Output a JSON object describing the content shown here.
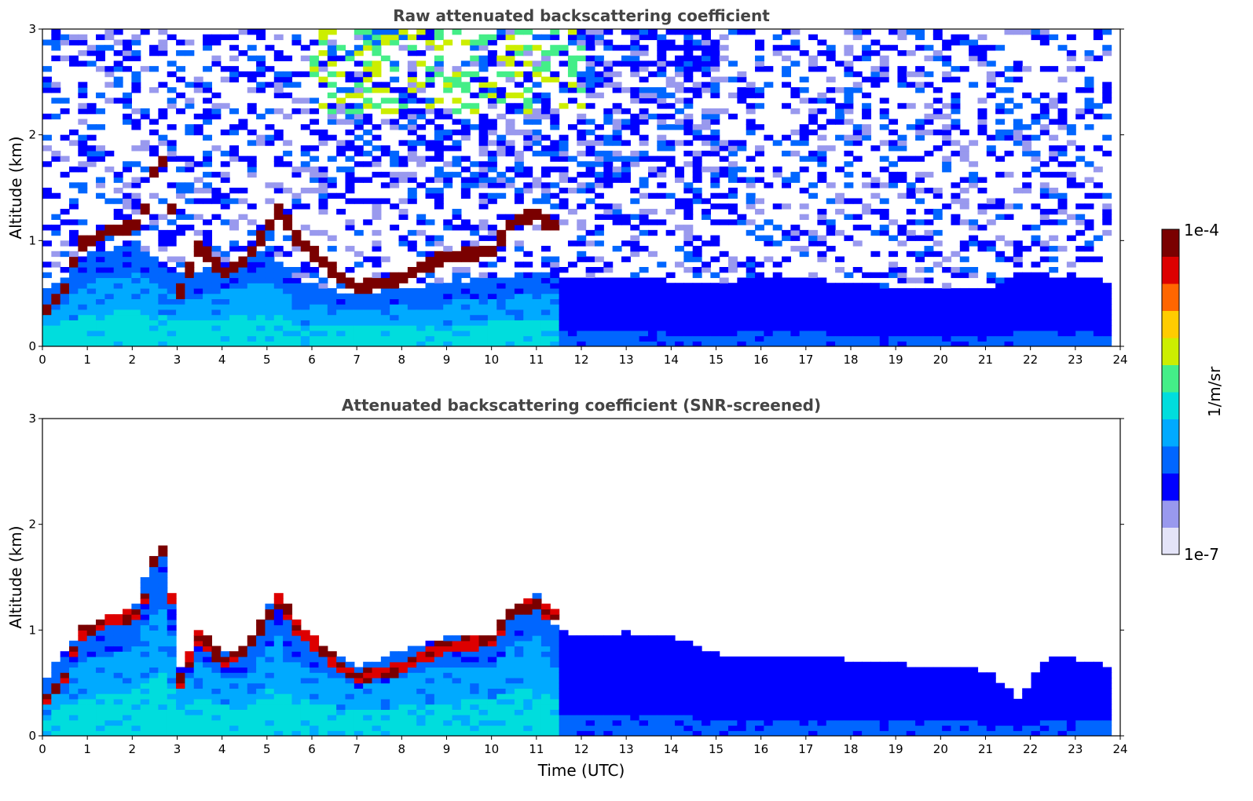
{
  "chart_data": [
    {
      "type": "heatmap",
      "title": "Raw attenuated backscattering coefficient",
      "xlabel": "",
      "ylabel": "Altitude (km)",
      "xlim": [
        0,
        24
      ],
      "ylim": [
        0,
        3
      ],
      "x_ticks": [
        "0",
        "1",
        "2",
        "3",
        "4",
        "5",
        "6",
        "7",
        "8",
        "9",
        "10",
        "11",
        "12",
        "13",
        "14",
        "15",
        "16",
        "17",
        "18",
        "19",
        "20",
        "21",
        "22",
        "23",
        "24"
      ],
      "y_ticks": [
        "0",
        "1",
        "2",
        "3"
      ],
      "data_end_hour": 23.8,
      "boundary_layer_top_km": [
        [
          0,
          0.5
        ],
        [
          1,
          0.85
        ],
        [
          2,
          1.0
        ],
        [
          3,
          0.7
        ],
        [
          4,
          0.75
        ],
        [
          5,
          0.9
        ],
        [
          6,
          0.55
        ],
        [
          7,
          0.5
        ],
        [
          8,
          0.55
        ],
        [
          9,
          0.6
        ],
        [
          10,
          0.65
        ],
        [
          11,
          0.7
        ],
        [
          12,
          0.65
        ],
        [
          13,
          0.65
        ],
        [
          14,
          0.62
        ],
        [
          15,
          0.6
        ],
        [
          16,
          0.65
        ],
        [
          17,
          0.65
        ],
        [
          18,
          0.6
        ],
        [
          19,
          0.55
        ],
        [
          20,
          0.55
        ],
        [
          21,
          0.55
        ],
        [
          22,
          0.7
        ],
        [
          23,
          0.65
        ],
        [
          23.8,
          0.6
        ]
      ],
      "cloud_layer_km": [
        [
          0,
          0.3
        ],
        [
          0.5,
          0.55
        ],
        [
          0.8,
          0.95
        ],
        [
          1.5,
          1.1
        ],
        [
          2.2,
          1.15
        ],
        [
          2.5,
          1.7
        ],
        [
          2.8,
          1.8
        ],
        [
          3.0,
          0.45
        ],
        [
          3.5,
          0.95
        ],
        [
          4.0,
          0.7
        ],
        [
          4.5,
          0.8
        ],
        [
          5.0,
          1.1
        ],
        [
          5.3,
          1.3
        ],
        [
          5.6,
          1.05
        ],
        [
          6.5,
          0.7
        ],
        [
          7.0,
          0.55
        ],
        [
          8.0,
          0.65
        ],
        [
          9.0,
          0.85
        ],
        [
          10.0,
          0.9
        ],
        [
          10.5,
          1.2
        ],
        [
          11.0,
          1.25
        ],
        [
          11.3,
          1.15
        ]
      ],
      "noise_level_note": "",
      "series": [
        {
          "name": "backscatter"
        }
      ],
      "colorbar": {
        "label": "1/m/sr",
        "max_label": "1e-4",
        "min_label": "1e-7",
        "scale": "log"
      }
    },
    {
      "type": "heatmap",
      "title": "Attenuated backscattering coefficient (SNR-screened)",
      "xlabel": "Time (UTC)",
      "ylabel": "Altitude (km)",
      "xlim": [
        0,
        24
      ],
      "ylim": [
        0,
        3
      ],
      "x_ticks": [
        "0",
        "1",
        "2",
        "3",
        "4",
        "5",
        "6",
        "7",
        "8",
        "9",
        "10",
        "11",
        "12",
        "13",
        "14",
        "15",
        "16",
        "17",
        "18",
        "19",
        "20",
        "21",
        "22",
        "23",
        "24"
      ],
      "y_ticks": [
        "0",
        "1",
        "2",
        "3"
      ],
      "data_end_hour": 23.8,
      "signal_top_km": [
        [
          0,
          0.5
        ],
        [
          0.5,
          0.8
        ],
        [
          1,
          1.05
        ],
        [
          2,
          1.15
        ],
        [
          2.3,
          1.5
        ],
        [
          2.8,
          1.8
        ],
        [
          3.0,
          0.6
        ],
        [
          3.5,
          1.0
        ],
        [
          4.0,
          0.8
        ],
        [
          4.5,
          0.75
        ],
        [
          5.0,
          1.2
        ],
        [
          5.3,
          1.35
        ],
        [
          5.6,
          1.0
        ],
        [
          6.5,
          0.8
        ],
        [
          7.0,
          0.65
        ],
        [
          8.0,
          0.8
        ],
        [
          9.0,
          0.95
        ],
        [
          10.0,
          0.95
        ],
        [
          10.5,
          1.25
        ],
        [
          11.0,
          1.35
        ],
        [
          11.5,
          1.0
        ],
        [
          12,
          0.95
        ],
        [
          13,
          0.98
        ],
        [
          14,
          0.95
        ],
        [
          15,
          0.78
        ],
        [
          16,
          0.75
        ],
        [
          17,
          0.75
        ],
        [
          18,
          0.72
        ],
        [
          19,
          0.68
        ],
        [
          20,
          0.66
        ],
        [
          21,
          0.62
        ],
        [
          21.5,
          0.45
        ],
        [
          21.8,
          0.32
        ],
        [
          22.1,
          0.6
        ],
        [
          22.5,
          0.75
        ],
        [
          23,
          0.72
        ],
        [
          23.8,
          0.65
        ]
      ],
      "cloud_layer_km": [
        [
          0,
          0.3
        ],
        [
          0.5,
          0.55
        ],
        [
          0.8,
          0.95
        ],
        [
          1.5,
          1.1
        ],
        [
          2.2,
          1.15
        ],
        [
          2.5,
          1.7
        ],
        [
          2.8,
          1.8
        ],
        [
          3.0,
          0.45
        ],
        [
          3.5,
          0.95
        ],
        [
          4.0,
          0.7
        ],
        [
          4.5,
          0.8
        ],
        [
          5.0,
          1.1
        ],
        [
          5.3,
          1.3
        ],
        [
          5.6,
          1.05
        ],
        [
          6.5,
          0.7
        ],
        [
          7.0,
          0.55
        ],
        [
          8.0,
          0.65
        ],
        [
          9.0,
          0.85
        ],
        [
          10.0,
          0.9
        ],
        [
          10.5,
          1.2
        ],
        [
          11.0,
          1.25
        ],
        [
          11.3,
          1.15
        ]
      ],
      "colorbar": {
        "label": "1/m/sr",
        "max_label": "1e-4",
        "min_label": "1e-7",
        "scale": "log"
      }
    }
  ],
  "colormap": [
    "#e4e4f8",
    "#9999ee",
    "#0000ff",
    "#0066ff",
    "#00aaff",
    "#00dddd",
    "#44ee88",
    "#ccee00",
    "#ffcc00",
    "#ff6600",
    "#dd0000",
    "#7a0000"
  ]
}
